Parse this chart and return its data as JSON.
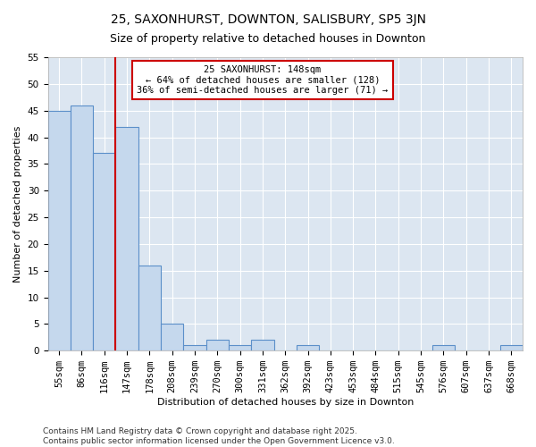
{
  "title": "25, SAXONHURST, DOWNTON, SALISBURY, SP5 3JN",
  "subtitle": "Size of property relative to detached houses in Downton",
  "xlabel": "Distribution of detached houses by size in Downton",
  "ylabel": "Number of detached properties",
  "categories": [
    "55sqm",
    "86sqm",
    "116sqm",
    "147sqm",
    "178sqm",
    "208sqm",
    "239sqm",
    "270sqm",
    "300sqm",
    "331sqm",
    "362sqm",
    "392sqm",
    "423sqm",
    "453sqm",
    "484sqm",
    "515sqm",
    "545sqm",
    "576sqm",
    "607sqm",
    "637sqm",
    "668sqm"
  ],
  "values": [
    45,
    46,
    37,
    42,
    16,
    5,
    1,
    2,
    1,
    2,
    0,
    1,
    0,
    0,
    0,
    0,
    0,
    1,
    0,
    0,
    1
  ],
  "bar_color": "#c5d8ed",
  "bar_edge_color": "#5b8fc9",
  "bg_color": "#dce6f1",
  "grid_color": "#ffffff",
  "vline_x_index": 2,
  "vline_color": "#cc0000",
  "annotation_text": "25 SAXONHURST: 148sqm\n← 64% of detached houses are smaller (128)\n36% of semi-detached houses are larger (71) →",
  "annotation_box_facecolor": "#ffffff",
  "annotation_border_color": "#cc0000",
  "ylim": [
    0,
    55
  ],
  "yticks": [
    0,
    5,
    10,
    15,
    20,
    25,
    30,
    35,
    40,
    45,
    50,
    55
  ],
  "footer": "Contains HM Land Registry data © Crown copyright and database right 2025.\nContains public sector information licensed under the Open Government Licence v3.0.",
  "title_fontsize": 10,
  "subtitle_fontsize": 9,
  "label_fontsize": 8,
  "tick_fontsize": 7.5,
  "annotation_fontsize": 7.5,
  "footer_fontsize": 6.5
}
